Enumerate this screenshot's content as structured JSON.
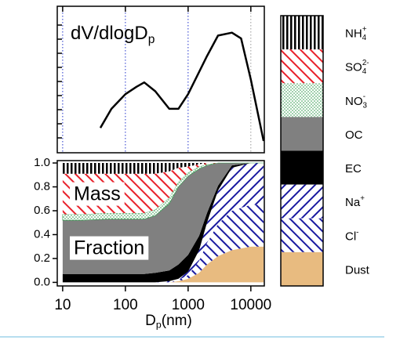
{
  "chart_data": [
    {
      "type": "line",
      "title": {
        "text": "dV/dlogD",
        "sub": "p"
      },
      "x": [
        40,
        60,
        100,
        150,
        200,
        300,
        500,
        700,
        1000,
        2000,
        3000,
        5000,
        7000,
        10000,
        16000
      ],
      "values": [
        0.17,
        0.3,
        0.4,
        0.45,
        0.48,
        0.42,
        0.3,
        0.3,
        0.4,
        0.66,
        0.8,
        0.82,
        0.78,
        0.5,
        0.08
      ],
      "color": "#000000",
      "log_x": true,
      "xlim": [
        8.2,
        16400
      ],
      "ylim": [
        0,
        1
      ],
      "xticks": [
        10,
        100,
        1000,
        10000
      ]
    },
    {
      "type": "stacked_area",
      "xlabel": {
        "text": "D",
        "sub": "p",
        "rest": "(nm)"
      },
      "annotations": [
        "Mass",
        "Fraction"
      ],
      "x": [
        10,
        20,
        50,
        100,
        200,
        300,
        500,
        700,
        1000,
        1500,
        2000,
        3000,
        5000,
        10000,
        16000
      ],
      "series": [
        {
          "name": {
            "base": "Dust"
          },
          "color": "#e8bb80",
          "pattern": "solid",
          "values": [
            0,
            0,
            0,
            0,
            0,
            0,
            0,
            0.01,
            0.03,
            0.08,
            0.15,
            0.22,
            0.27,
            0.3,
            0.3
          ]
        },
        {
          "name": {
            "base": "Cl",
            "sup": "-"
          },
          "color": "#1a1aa0",
          "pattern": "forward-lines",
          "values": [
            0,
            0,
            0,
            0,
            0,
            0,
            0,
            0.01,
            0.03,
            0.1,
            0.18,
            0.27,
            0.33,
            0.35,
            0.35
          ]
        },
        {
          "name": {
            "base": "Na",
            "sup": "+"
          },
          "color": "#1a1aa0",
          "pattern": "back-lines",
          "values": [
            0,
            0,
            0,
            0,
            0,
            0,
            0.01,
            0.01,
            0.03,
            0.09,
            0.17,
            0.28,
            0.36,
            0.35,
            0.35
          ]
        },
        {
          "name": {
            "base": "EC"
          },
          "color": "#000000",
          "pattern": "solid",
          "values": [
            0.07,
            0.07,
            0.07,
            0.07,
            0.07,
            0.08,
            0.09,
            0.12,
            0.14,
            0.12,
            0.08,
            0.04,
            0.02,
            0,
            0
          ]
        },
        {
          "name": {
            "base": "OC"
          },
          "color": "#808080",
          "pattern": "solid",
          "values": [
            0.45,
            0.45,
            0.46,
            0.46,
            0.46,
            0.48,
            0.56,
            0.65,
            0.66,
            0.56,
            0.4,
            0.19,
            0.02,
            0,
            0
          ]
        },
        {
          "name": {
            "base": "NO",
            "sub": "3",
            "sup": "-"
          },
          "color": "#2e9a4a",
          "pattern": "dots",
          "values": [
            0.05,
            0.05,
            0.05,
            0.05,
            0.05,
            0.05,
            0.05,
            0.04,
            0.03,
            0.02,
            0.01,
            0,
            0,
            0,
            0
          ]
        },
        {
          "name": {
            "base": "SO",
            "sub": "4",
            "sup": "2-"
          },
          "color": "#e8202a",
          "pattern": "forward-lines",
          "values": [
            0.34,
            0.34,
            0.33,
            0.33,
            0.33,
            0.3,
            0.22,
            0.12,
            0.05,
            0.02,
            0.01,
            0,
            0,
            0,
            0
          ]
        },
        {
          "name": {
            "base": "NH",
            "sub": "4",
            "sup": "+"
          },
          "color": "#000000",
          "pattern": "vertical-lines",
          "values": [
            0.09,
            0.09,
            0.09,
            0.09,
            0.09,
            0.09,
            0.07,
            0.04,
            0.03,
            0.01,
            0,
            0,
            0,
            0,
            0
          ]
        }
      ],
      "log_x": true,
      "xlim": [
        8.2,
        16400
      ],
      "ylim": [
        -0.03,
        1.02
      ],
      "xticks": [
        10,
        100,
        1000,
        10000
      ],
      "yticks": [
        {
          "value": 0,
          "label": "0.0"
        },
        {
          "value": 0.2,
          "label": "0.2"
        },
        {
          "value": 0.4,
          "label": "0.4"
        },
        {
          "value": 0.6,
          "label": "0.6"
        },
        {
          "value": 0.8,
          "label": "0.8"
        },
        {
          "value": 1,
          "label": "1.0"
        }
      ]
    }
  ]
}
